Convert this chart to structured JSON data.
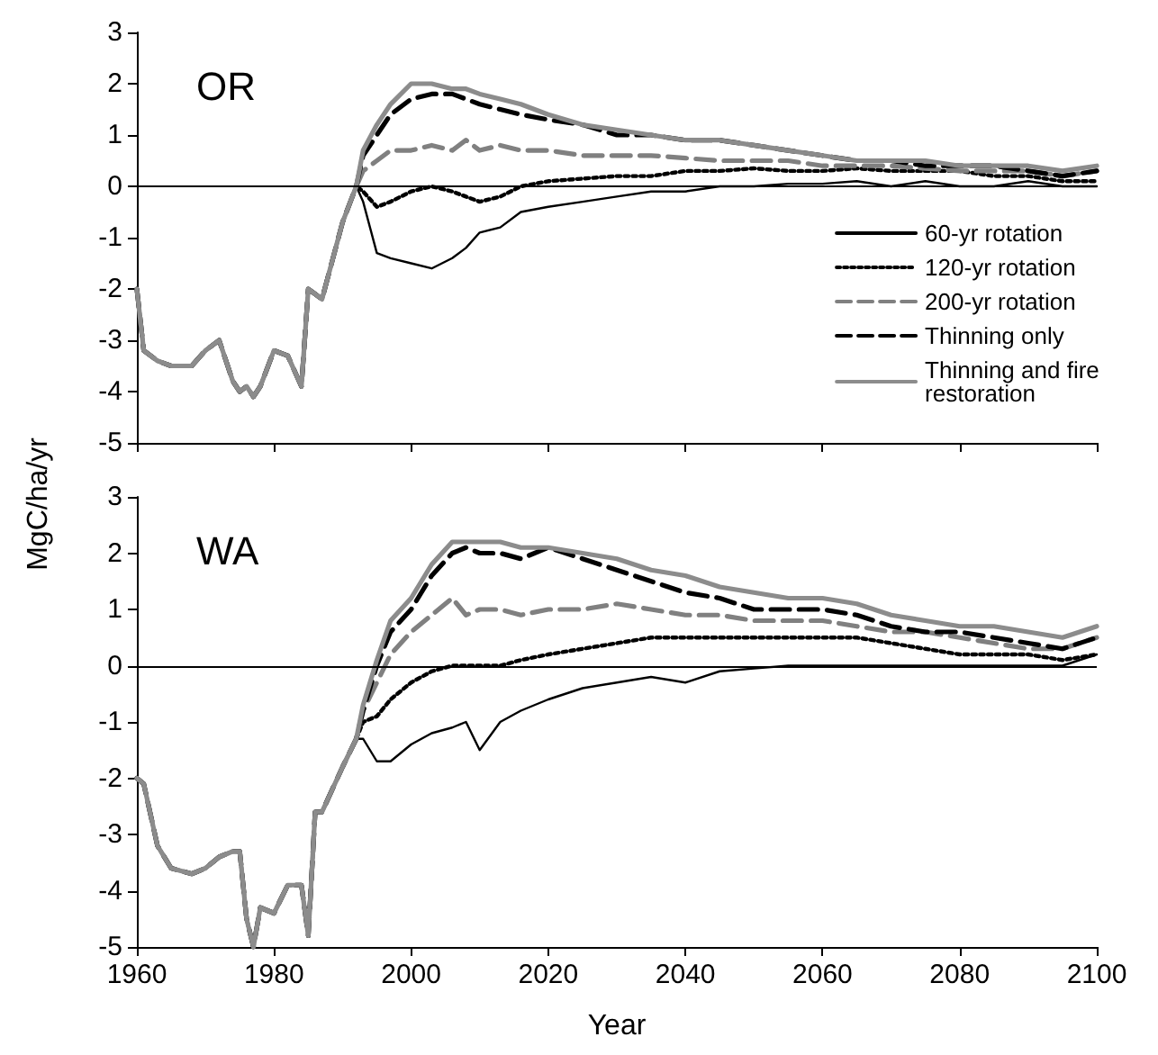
{
  "chart_data": [
    {
      "type": "line",
      "title": "OR",
      "ylabel": "MgC/ha/yr",
      "x": [
        1960,
        1961,
        1963,
        1965,
        1968,
        1970,
        1972,
        1974,
        1975,
        1976,
        1977,
        1978,
        1980,
        1982,
        1984,
        1985,
        1986,
        1987,
        1990,
        1992,
        1993,
        1995,
        1997,
        2000,
        2003,
        2006,
        2008,
        2010,
        2013,
        2016,
        2020,
        2025,
        2030,
        2035,
        2040,
        2045,
        2050,
        2055,
        2060,
        2065,
        2070,
        2075,
        2080,
        2085,
        2090,
        2095,
        2100
      ],
      "series": [
        {
          "name": "60-yr rotation",
          "color": "#000000",
          "line_style": "solid",
          "values": [
            -2,
            -3.2,
            -3.4,
            -3.5,
            -3.5,
            -3.2,
            -3.0,
            -3.8,
            -4.0,
            -3.9,
            -4.1,
            -3.9,
            -3.2,
            -3.3,
            -3.9,
            -2.0,
            -2.1,
            -2.2,
            -0.7,
            0.0,
            -0.3,
            -1.3,
            -1.4,
            -1.5,
            -1.6,
            -1.4,
            -1.2,
            -0.9,
            -0.8,
            -0.5,
            -0.4,
            -0.3,
            -0.2,
            -0.1,
            -0.1,
            0.0,
            0.0,
            0.05,
            0.05,
            0.1,
            0.0,
            0.1,
            0.0,
            0.0,
            0.1,
            0.0,
            0.0
          ]
        },
        {
          "name": "120-yr rotation",
          "color": "#000000",
          "line_style": "dotted",
          "values": [
            -2,
            -3.2,
            -3.4,
            -3.5,
            -3.5,
            -3.2,
            -3.0,
            -3.8,
            -4.0,
            -3.9,
            -4.1,
            -3.9,
            -3.2,
            -3.3,
            -3.9,
            -2.0,
            -2.1,
            -2.2,
            -0.7,
            0.0,
            -0.1,
            -0.4,
            -0.3,
            -0.1,
            0.0,
            -0.1,
            -0.2,
            -0.3,
            -0.2,
            0.0,
            0.1,
            0.15,
            0.2,
            0.2,
            0.3,
            0.3,
            0.35,
            0.3,
            0.3,
            0.35,
            0.3,
            0.3,
            0.3,
            0.2,
            0.2,
            0.1,
            0.1
          ]
        },
        {
          "name": "200-yr rotation",
          "color": "#808080",
          "line_style": "dashed",
          "values": [
            -2,
            -3.2,
            -3.4,
            -3.5,
            -3.5,
            -3.2,
            -3.0,
            -3.8,
            -4.0,
            -3.9,
            -4.1,
            -3.9,
            -3.2,
            -3.3,
            -3.9,
            -2.0,
            -2.1,
            -2.2,
            -0.7,
            0.0,
            0.3,
            0.5,
            0.7,
            0.7,
            0.8,
            0.7,
            0.9,
            0.7,
            0.8,
            0.7,
            0.7,
            0.6,
            0.6,
            0.6,
            0.55,
            0.5,
            0.5,
            0.5,
            0.4,
            0.4,
            0.4,
            0.35,
            0.3,
            0.3,
            0.3,
            0.2,
            0.3
          ]
        },
        {
          "name": "Thinning only",
          "color": "#000000",
          "line_style": "dashed",
          "values": [
            -2,
            -3.2,
            -3.4,
            -3.5,
            -3.5,
            -3.2,
            -3.0,
            -3.8,
            -4.0,
            -3.9,
            -4.1,
            -3.9,
            -3.2,
            -3.3,
            -3.9,
            -2.0,
            -2.1,
            -2.2,
            -0.7,
            0.0,
            0.6,
            1.0,
            1.4,
            1.7,
            1.8,
            1.8,
            1.7,
            1.6,
            1.5,
            1.4,
            1.3,
            1.2,
            1.0,
            1.0,
            0.9,
            0.9,
            0.8,
            0.7,
            0.6,
            0.5,
            0.5,
            0.4,
            0.4,
            0.4,
            0.3,
            0.2,
            0.3
          ]
        },
        {
          "name": "Thinning and fire restoration",
          "color": "#8c8c8c",
          "line_style": "solid",
          "values": [
            -2,
            -3.2,
            -3.4,
            -3.5,
            -3.5,
            -3.2,
            -3.0,
            -3.8,
            -4.0,
            -3.9,
            -4.1,
            -3.9,
            -3.2,
            -3.3,
            -3.9,
            -2.0,
            -2.1,
            -2.2,
            -0.7,
            0.0,
            0.7,
            1.2,
            1.6,
            2.0,
            2.0,
            1.9,
            1.9,
            1.8,
            1.7,
            1.6,
            1.4,
            1.2,
            1.1,
            1.0,
            0.9,
            0.9,
            0.8,
            0.7,
            0.6,
            0.5,
            0.5,
            0.5,
            0.4,
            0.4,
            0.4,
            0.3,
            0.4
          ]
        }
      ],
      "xlim": [
        1960,
        2100
      ],
      "xticks": [
        1960,
        1980,
        2000,
        2020,
        2040,
        2060,
        2080,
        2100
      ],
      "ylim": [
        -5,
        3
      ],
      "yticks": [
        -5,
        -4,
        -3,
        -2,
        -1,
        0,
        1,
        2,
        3
      ],
      "tick_labels": "y",
      "grid": false,
      "marker": "none",
      "legend": "bottom right",
      "ref_lines": [
        {
          "axis": "y",
          "value": 0,
          "color": "#000000"
        }
      ]
    },
    {
      "type": "line",
      "title": "WA",
      "xlabel": "Year",
      "x": [
        1960,
        1961,
        1963,
        1965,
        1968,
        1970,
        1972,
        1974,
        1975,
        1976,
        1977,
        1978,
        1980,
        1982,
        1984,
        1985,
        1986,
        1987,
        1990,
        1992,
        1993,
        1995,
        1997,
        2000,
        2003,
        2006,
        2008,
        2010,
        2013,
        2016,
        2020,
        2025,
        2030,
        2035,
        2040,
        2045,
        2050,
        2055,
        2060,
        2065,
        2070,
        2075,
        2080,
        2085,
        2090,
        2095,
        2100
      ],
      "series": [
        {
          "color": "#000000",
          "line_style": "solid",
          "values": [
            -2,
            -2.1,
            -3.2,
            -3.6,
            -3.7,
            -3.6,
            -3.4,
            -3.3,
            -3.3,
            -4.5,
            -5.0,
            -4.3,
            -4.4,
            -3.9,
            -3.9,
            -4.8,
            -2.6,
            -2.6,
            -1.8,
            -1.3,
            -1.3,
            -1.7,
            -1.7,
            -1.4,
            -1.2,
            -1.1,
            -1.0,
            -1.5,
            -1.0,
            -0.8,
            -0.6,
            -0.4,
            -0.3,
            -0.2,
            -0.3,
            -0.1,
            -0.05,
            0.0,
            0.0,
            0.0,
            0.0,
            0.0,
            0.0,
            0.0,
            0.0,
            0.0,
            0.2
          ]
        },
        {
          "color": "#000000",
          "line_style": "dotted",
          "values": [
            -2,
            -2.1,
            -3.2,
            -3.6,
            -3.7,
            -3.6,
            -3.4,
            -3.3,
            -3.3,
            -4.5,
            -5.0,
            -4.3,
            -4.4,
            -3.9,
            -3.9,
            -4.8,
            -2.6,
            -2.6,
            -1.8,
            -1.3,
            -1.0,
            -0.9,
            -0.6,
            -0.3,
            -0.1,
            0.0,
            0.0,
            0.0,
            0.0,
            0.1,
            0.2,
            0.3,
            0.4,
            0.5,
            0.5,
            0.5,
            0.5,
            0.5,
            0.5,
            0.5,
            0.4,
            0.3,
            0.2,
            0.2,
            0.2,
            0.1,
            0.2
          ]
        },
        {
          "color": "#808080",
          "line_style": "dashed",
          "values": [
            -2,
            -2.1,
            -3.2,
            -3.6,
            -3.7,
            -3.6,
            -3.4,
            -3.3,
            -3.3,
            -4.5,
            -5.0,
            -4.3,
            -4.4,
            -3.9,
            -3.9,
            -4.8,
            -2.6,
            -2.6,
            -1.8,
            -1.3,
            -0.8,
            -0.3,
            0.2,
            0.6,
            0.9,
            1.2,
            0.9,
            1.0,
            1.0,
            0.9,
            1.0,
            1.0,
            1.1,
            1.0,
            0.9,
            0.9,
            0.8,
            0.8,
            0.8,
            0.7,
            0.6,
            0.6,
            0.5,
            0.4,
            0.3,
            0.3,
            0.5
          ]
        },
        {
          "color": "#000000",
          "line_style": "dashed",
          "values": [
            -2,
            -2.1,
            -3.2,
            -3.6,
            -3.7,
            -3.6,
            -3.4,
            -3.3,
            -3.3,
            -4.5,
            -5.0,
            -4.3,
            -4.4,
            -3.9,
            -3.9,
            -4.8,
            -2.6,
            -2.6,
            -1.8,
            -1.3,
            -0.8,
            0.0,
            0.6,
            1.0,
            1.6,
            2.0,
            2.1,
            2.0,
            2.0,
            1.9,
            2.1,
            1.9,
            1.7,
            1.5,
            1.3,
            1.2,
            1.0,
            1.0,
            1.0,
            0.9,
            0.7,
            0.6,
            0.6,
            0.5,
            0.4,
            0.3,
            0.5
          ]
        },
        {
          "color": "#8c8c8c",
          "line_style": "solid",
          "values": [
            -2,
            -2.1,
            -3.2,
            -3.6,
            -3.7,
            -3.6,
            -3.4,
            -3.3,
            -3.3,
            -4.5,
            -5.0,
            -4.3,
            -4.4,
            -3.9,
            -3.9,
            -4.8,
            -2.6,
            -2.6,
            -1.8,
            -1.3,
            -0.7,
            0.1,
            0.8,
            1.2,
            1.8,
            2.2,
            2.2,
            2.2,
            2.2,
            2.1,
            2.1,
            2.0,
            1.9,
            1.7,
            1.6,
            1.4,
            1.3,
            1.2,
            1.2,
            1.1,
            0.9,
            0.8,
            0.7,
            0.7,
            0.6,
            0.5,
            0.7
          ]
        }
      ],
      "xlim": [
        1960,
        2100
      ],
      "xticks": [
        1960,
        1980,
        2000,
        2020,
        2040,
        2060,
        2080,
        2100
      ],
      "ylim": [
        -5,
        3
      ],
      "yticks": [
        -5,
        -4,
        -3,
        -2,
        -1,
        0,
        1,
        2,
        3
      ],
      "grid": false,
      "marker": "none",
      "legend": false,
      "ref_lines": [
        {
          "axis": "y",
          "value": 0,
          "color": "#000000"
        }
      ]
    }
  ]
}
